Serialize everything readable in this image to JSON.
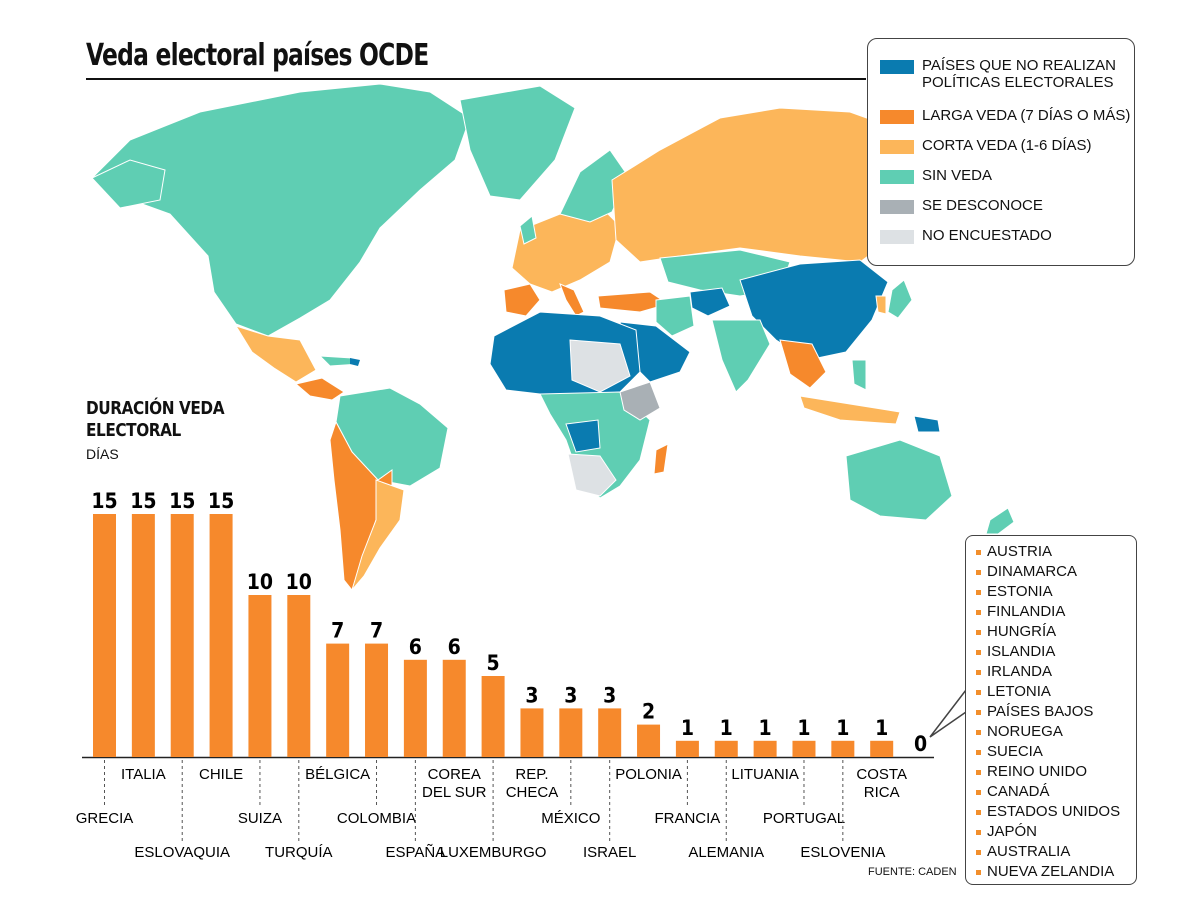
{
  "title": "Veda electoral países OCDE",
  "source": "FUENTE: CADEN",
  "colors": {
    "no_policies": "#0a7bb0",
    "long_ban": "#f6892c",
    "short_ban": "#fcb65a",
    "no_ban": "#5fceb3",
    "unknown": "#a9b0b5",
    "not_surveyed": "#dde1e4",
    "bar": "#f6892c"
  },
  "legend": [
    {
      "label": "Países que no realizan políticas electorales",
      "color_key": "no_policies"
    },
    {
      "label": "Larga veda (7 días o más)",
      "color_key": "long_ban"
    },
    {
      "label": "Corta veda (1-6 días)",
      "color_key": "short_ban"
    },
    {
      "label": "Sin veda",
      "color_key": "no_ban"
    },
    {
      "label": "Se desconoce",
      "color_key": "unknown"
    },
    {
      "label": "No encuestado",
      "color_key": "not_surveyed"
    }
  ],
  "chart_data": {
    "type": "bar",
    "title": "DURACIÓN VEDA ELECTORAL",
    "ylabel": "DÍAS",
    "categories": [
      "GRECIA",
      "ITALIA",
      "ESLOVAQUIA",
      "CHILE",
      "SUIZA",
      "TURQUÍA",
      "BÉLGICA",
      "COLOMBIA",
      "ESPAÑA",
      "COREA DEL SUR",
      "LUXEMBURGO",
      "REP. CHECA",
      "MÉXICO",
      "ISRAEL",
      "POLONIA",
      "FRANCIA",
      "ALEMANIA",
      "LITUANIA",
      "PORTUGAL",
      "ESLOVENIA",
      "COSTA RICA",
      ""
    ],
    "values": [
      15,
      15,
      15,
      15,
      10,
      10,
      7,
      7,
      6,
      6,
      5,
      3,
      3,
      3,
      2,
      1,
      1,
      1,
      1,
      1,
      1,
      0
    ],
    "ylim": [
      0,
      15
    ],
    "grid": false,
    "legend": "none"
  },
  "zero_countries": [
    "AUSTRIA",
    "DINAMARCA",
    "ESTONIA",
    "FINLANDIA",
    "HUNGRÍA",
    "ISLANDIA",
    "IRLANDA",
    "LETONIA",
    "PAÍSES BAJOS",
    "NORUEGA",
    "SUECIA",
    "REINO UNIDO",
    "CANADÁ",
    "ESTADOS UNIDOS",
    "JAPÓN",
    "AUSTRALIA",
    "NUEVA ZELANDIA"
  ]
}
